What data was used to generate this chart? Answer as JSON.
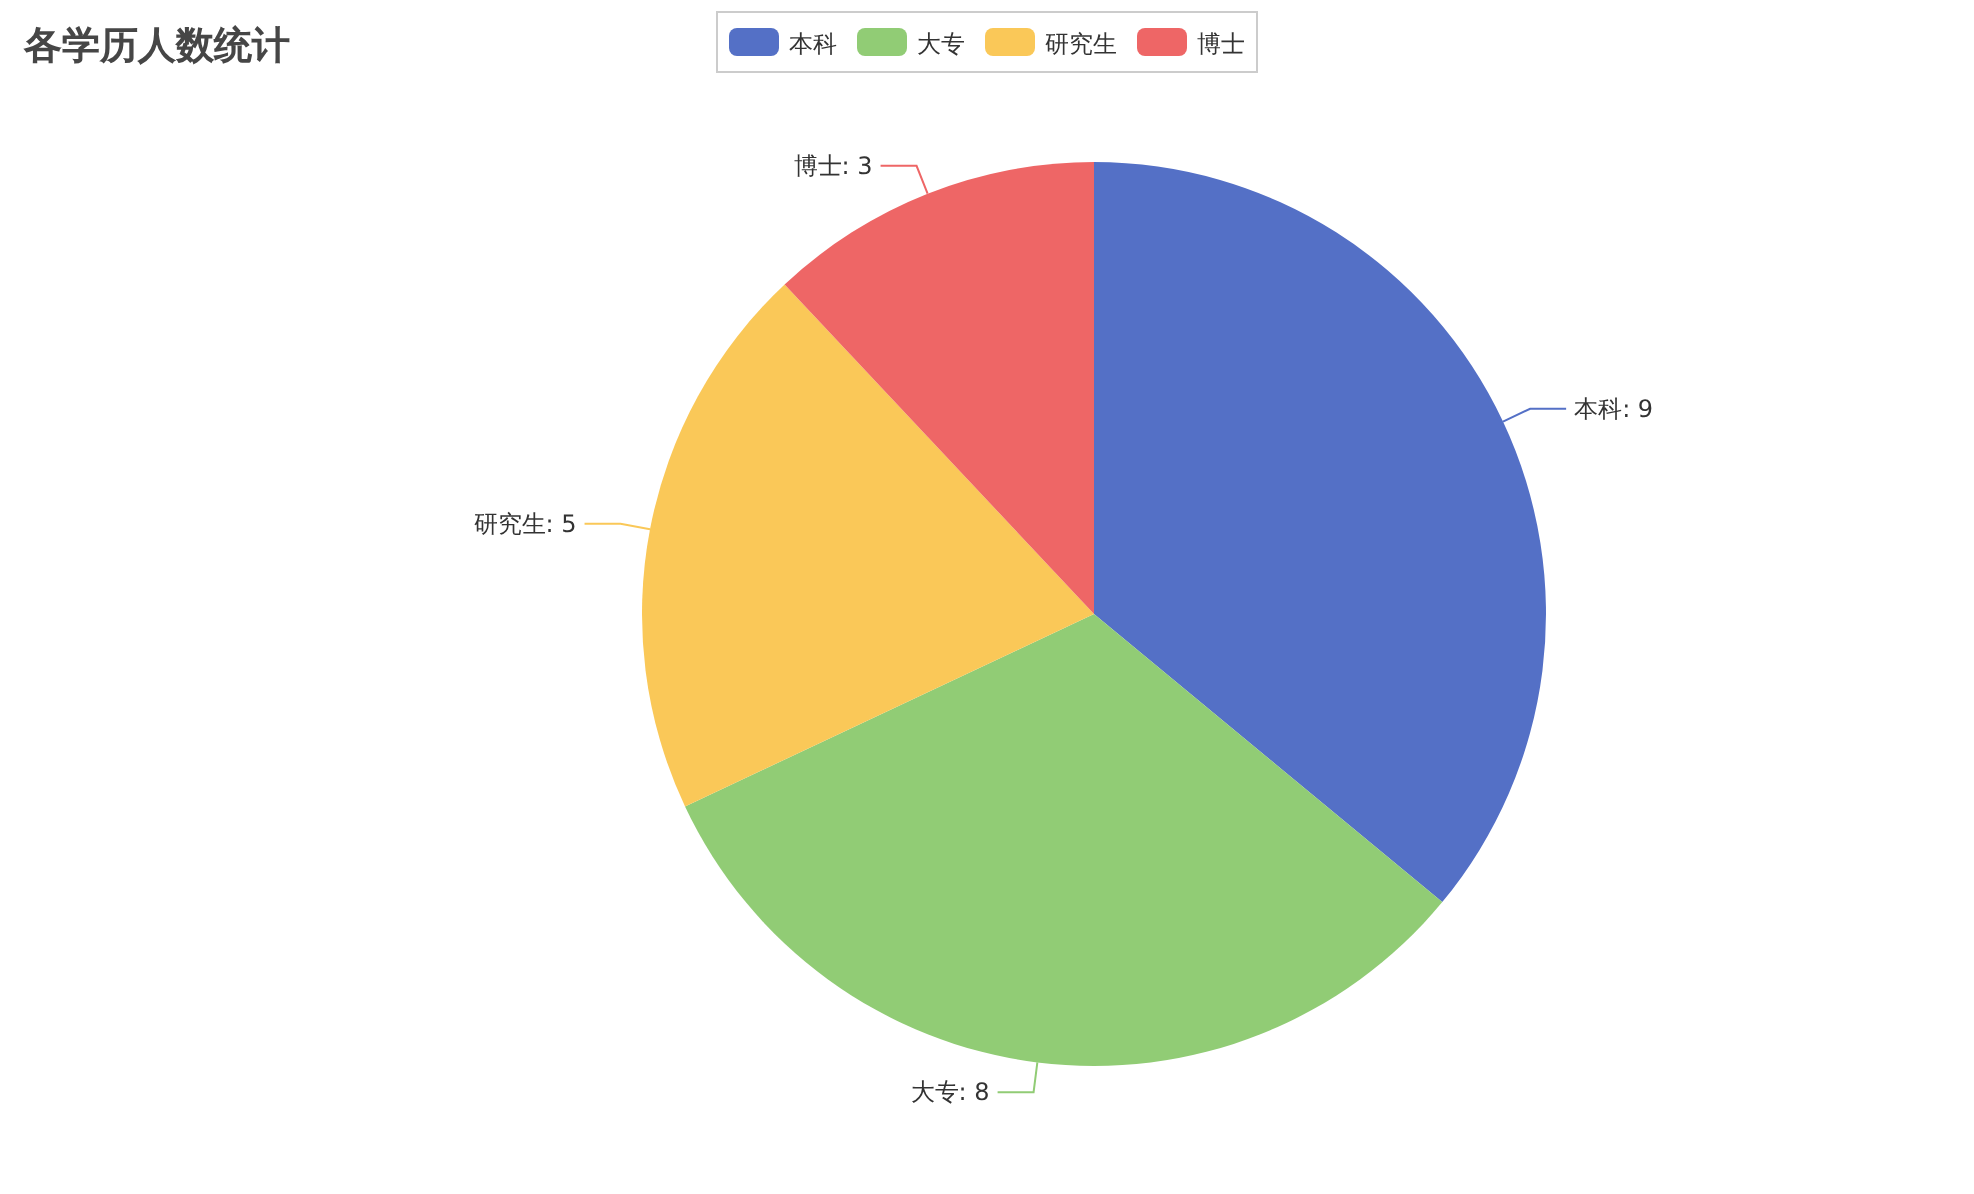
{
  "chart_data": {
    "type": "pie",
    "title": "各学历人数统计",
    "categories": [
      "本科",
      "大专",
      "研究生",
      "博士"
    ],
    "values": [
      9,
      8,
      5,
      3
    ],
    "colors": [
      "#5470c6",
      "#91cc75",
      "#fac858",
      "#ee6666"
    ],
    "legend": "top",
    "value_labels": [
      "本科: 9",
      "大专: 8",
      "研究生: 5",
      "博士: 3"
    ]
  }
}
